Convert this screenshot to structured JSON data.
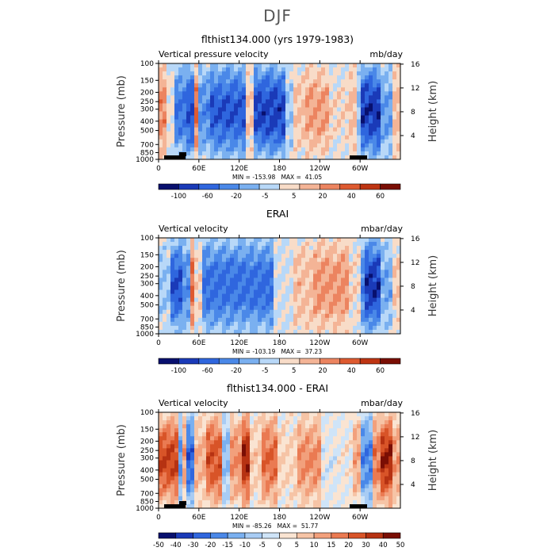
{
  "page_title": "DJF",
  "colors": {
    "scale_12": [
      "#08106e",
      "#1a3ab8",
      "#2f66de",
      "#4a88e8",
      "#7ab0f0",
      "#b8d8f8",
      "#f8dcc8",
      "#f4b496",
      "#ec8460",
      "#de5a30",
      "#be3412",
      "#7a0e04"
    ],
    "scale_14": [
      "#08106e",
      "#1a3ab8",
      "#2f66de",
      "#4a88e8",
      "#7ab0f0",
      "#a8ccf4",
      "#cfe4f8",
      "#fae4d2",
      "#f6c4a6",
      "#f2a07c",
      "#ea7a52",
      "#d85428",
      "#b63212",
      "#7a0e04"
    ],
    "topography": "#000000"
  },
  "chart_data": [
    {
      "type": "heatmap",
      "title": "flthist134.000 (yrs 1979-1983)",
      "variable_label": "Vertical pressure velocity",
      "units": "mb/day",
      "stats": "MIN = -153.98   MAX =  41.05",
      "min": -153.98,
      "max": 41.05,
      "x_ticks": [
        "0",
        "60E",
        "120E",
        "180",
        "120W",
        "60W"
      ],
      "x_tick_values": [
        0,
        60,
        120,
        180,
        240,
        300
      ],
      "xlim": [
        0,
        360
      ],
      "y_ticks": [
        "100",
        "150",
        "200",
        "250",
        "300",
        "400",
        "500",
        "700",
        "850",
        "1000"
      ],
      "y_tick_values": [
        100,
        150,
        200,
        250,
        300,
        400,
        500,
        700,
        850,
        1000
      ],
      "ylabel": "Pressure (mb)",
      "ylim": [
        1000,
        100
      ],
      "y_scale": "log",
      "right_ticks": [
        "16",
        "12",
        "8",
        "4"
      ],
      "right_tick_values": [
        16,
        12,
        8,
        4
      ],
      "right_label": "Height (km)",
      "colorbar_ticks": [
        "-100",
        "-60",
        "-20",
        "-5",
        "5",
        "20",
        "40",
        "60"
      ],
      "colorbar_levels": 12,
      "colorbar_scale": "scale_12"
    },
    {
      "type": "heatmap",
      "title": "ERAI",
      "variable_label": "Vertical velocity",
      "units": "mbar/day",
      "stats": "MIN = -103.19   MAX =  37.23",
      "min": -103.19,
      "max": 37.23,
      "x_ticks": [
        "0",
        "60E",
        "120E",
        "180",
        "120W",
        "60W"
      ],
      "x_tick_values": [
        0,
        60,
        120,
        180,
        240,
        300
      ],
      "xlim": [
        0,
        360
      ],
      "y_ticks": [
        "100",
        "150",
        "200",
        "250",
        "300",
        "400",
        "500",
        "700",
        "850",
        "1000"
      ],
      "y_tick_values": [
        100,
        150,
        200,
        250,
        300,
        400,
        500,
        700,
        850,
        1000
      ],
      "ylabel": "Pressure (mb)",
      "ylim": [
        1000,
        100
      ],
      "y_scale": "log",
      "right_ticks": [
        "16",
        "12",
        "8",
        "4"
      ],
      "right_tick_values": [
        16,
        12,
        8,
        4
      ],
      "right_label": "Height (km)",
      "colorbar_ticks": [
        "-100",
        "-60",
        "-20",
        "-5",
        "5",
        "20",
        "40",
        "60"
      ],
      "colorbar_levels": 12,
      "colorbar_scale": "scale_12"
    },
    {
      "type": "heatmap",
      "title": "flthist134.000 - ERAI",
      "variable_label": "Vertical velocity",
      "units": "mbar/day",
      "stats": "MIN = -85.26   MAX =  51.77",
      "min": -85.26,
      "max": 51.77,
      "x_ticks": [
        "0",
        "60E",
        "120E",
        "180",
        "120W",
        "60W"
      ],
      "x_tick_values": [
        0,
        60,
        120,
        180,
        240,
        300
      ],
      "xlim": [
        0,
        360
      ],
      "y_ticks": [
        "100",
        "150",
        "200",
        "250",
        "300",
        "400",
        "500",
        "700",
        "850",
        "1000"
      ],
      "y_tick_values": [
        100,
        150,
        200,
        250,
        300,
        400,
        500,
        700,
        850,
        1000
      ],
      "ylabel": "Pressure (mb)",
      "ylim": [
        1000,
        100
      ],
      "y_scale": "log",
      "right_ticks": [
        "16",
        "12",
        "8",
        "4"
      ],
      "right_tick_values": [
        16,
        12,
        8,
        4
      ],
      "right_label": "Height (km)",
      "colorbar_ticks": [
        "-50",
        "-40",
        "-30",
        "-20",
        "-15",
        "-10",
        "-5",
        "0",
        "5",
        "10",
        "15",
        "20",
        "30",
        "40",
        "50"
      ],
      "colorbar_levels": 14,
      "colorbar_scale": "scale_14"
    }
  ]
}
